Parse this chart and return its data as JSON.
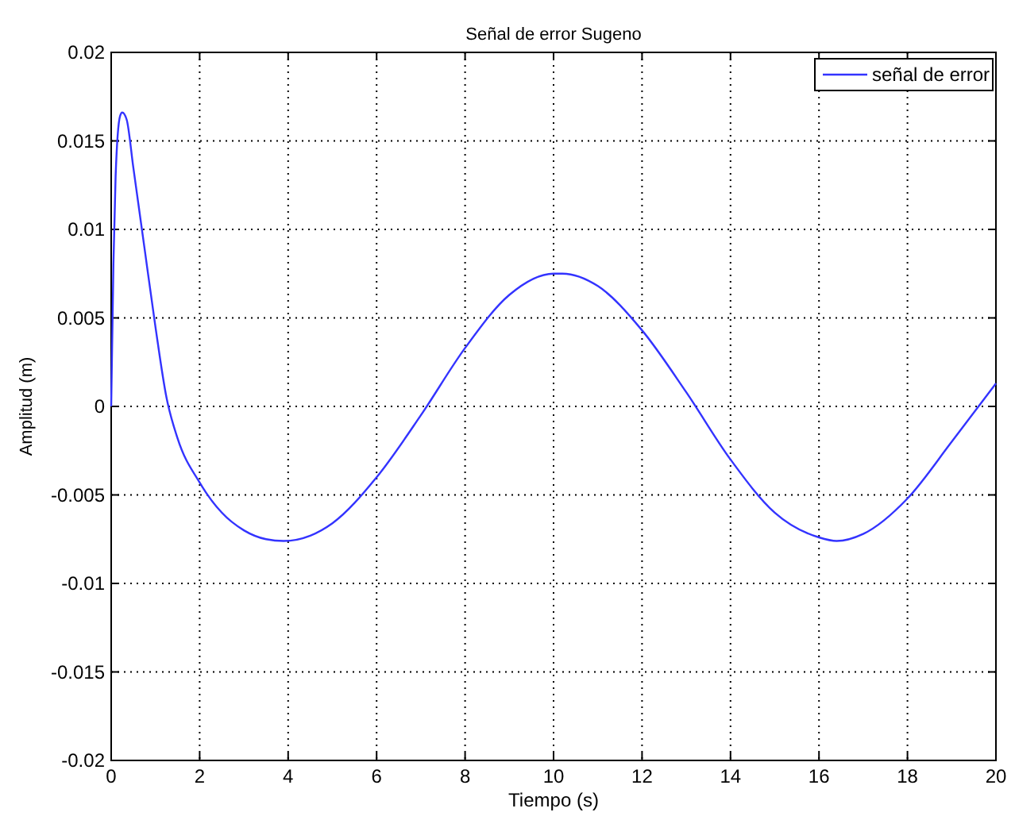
{
  "chart_data": {
    "type": "line",
    "title": "Señal de error Sugeno",
    "xlabel": "Tiempo (s)",
    "ylabel": "Amplitud (m)",
    "xlim": [
      0,
      20
    ],
    "xticks": [
      0,
      2,
      4,
      6,
      8,
      10,
      12,
      14,
      16,
      18,
      20
    ],
    "ylim": [
      -0.02,
      0.02
    ],
    "yticks": [
      -0.02,
      -0.015,
      -0.01,
      -0.005,
      0,
      0.005,
      0.01,
      0.015,
      0.02
    ],
    "grid": true,
    "legend": "top right",
    "line_style": "solid",
    "series": [
      {
        "name": "señal de error",
        "color": "#3333ff",
        "x": [
          0,
          0.05,
          0.1,
          0.2,
          0.25,
          0.35,
          0.5,
          0.75,
          1,
          1.25,
          1.5,
          2,
          2.5,
          3,
          3.5,
          3.9,
          4.5,
          5,
          6,
          7,
          8,
          9,
          10,
          10.2,
          11,
          12,
          13,
          14,
          15,
          16,
          16.4,
          17,
          18,
          19,
          20
        ],
        "values": [
          0,
          0.008,
          0.013,
          0.0164,
          0.0166,
          0.0162,
          0.0135,
          0.009,
          0.0045,
          0.0005,
          -0.0018,
          -0.0043,
          -0.006,
          -0.007,
          -0.0075,
          -0.0076,
          -0.0073,
          -0.0066,
          -0.004,
          -0.0005,
          0.0033,
          0.0063,
          0.0075,
          0.0075,
          0.0068,
          0.0043,
          0.0008,
          -0.003,
          -0.006,
          -0.0074,
          -0.0076,
          -0.0072,
          -0.0052,
          -0.002,
          0.0013
        ]
      }
    ]
  }
}
